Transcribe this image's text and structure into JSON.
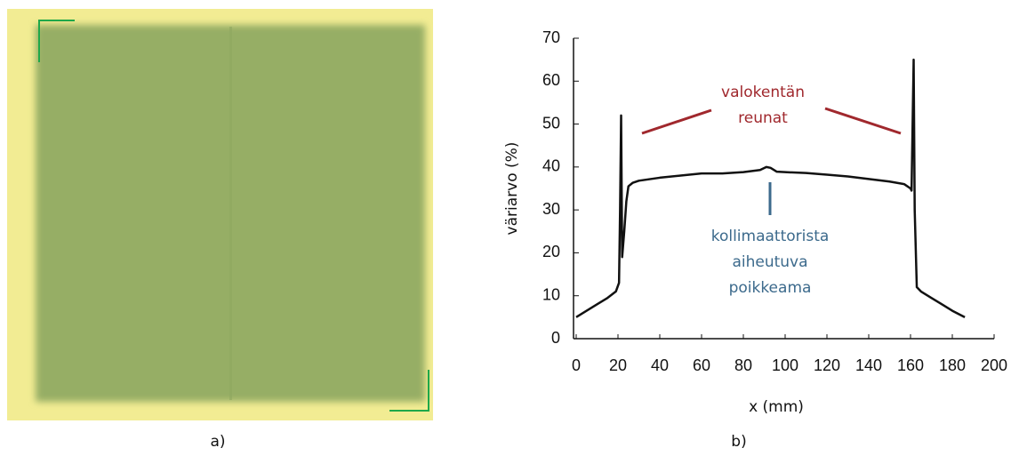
{
  "panel_labels": [
    "a)",
    "b)"
  ],
  "chart_data": {
    "type": "line",
    "x_label": "x (mm)",
    "y_label": "väriarvo (%)",
    "xlim": [
      0,
      200
    ],
    "xticks": [
      0,
      20,
      40,
      60,
      80,
      100,
      120,
      140,
      160,
      180,
      200
    ],
    "ylim": [
      0,
      70
    ],
    "yticks": [
      0,
      10,
      20,
      30,
      40,
      50,
      60,
      70
    ],
    "series": [
      {
        "color": "#111111",
        "x": [
          0,
          5,
          10,
          15,
          19,
          20.5,
          21,
          21.5,
          22,
          23,
          24,
          25,
          27,
          30,
          40,
          50,
          60,
          70,
          80,
          88,
          91,
          93,
          96,
          100,
          110,
          120,
          130,
          140,
          150,
          157,
          160,
          160.5,
          161,
          161.5,
          162,
          163,
          165,
          170,
          175,
          180,
          186
        ],
        "values": [
          5,
          6.5,
          8,
          9.5,
          11,
          13,
          30,
          52,
          19,
          25,
          32,
          35.5,
          36.3,
          36.8,
          37.5,
          38,
          38.5,
          38.5,
          38.8,
          39.3,
          40,
          39.8,
          38.9,
          38.8,
          38.6,
          38.2,
          37.8,
          37.2,
          36.6,
          36,
          35,
          34.5,
          50,
          65,
          30,
          12,
          11,
          9.5,
          8,
          6.5,
          5
        ]
      }
    ],
    "annotations": [
      {
        "lines": [
          "valokentän",
          "reunat"
        ],
        "color": "#a0282d"
      },
      {
        "lines": [
          "kollimaattorista",
          "aiheutuva",
          "poikkeama"
        ],
        "color": "#3c6a8c"
      }
    ]
  }
}
